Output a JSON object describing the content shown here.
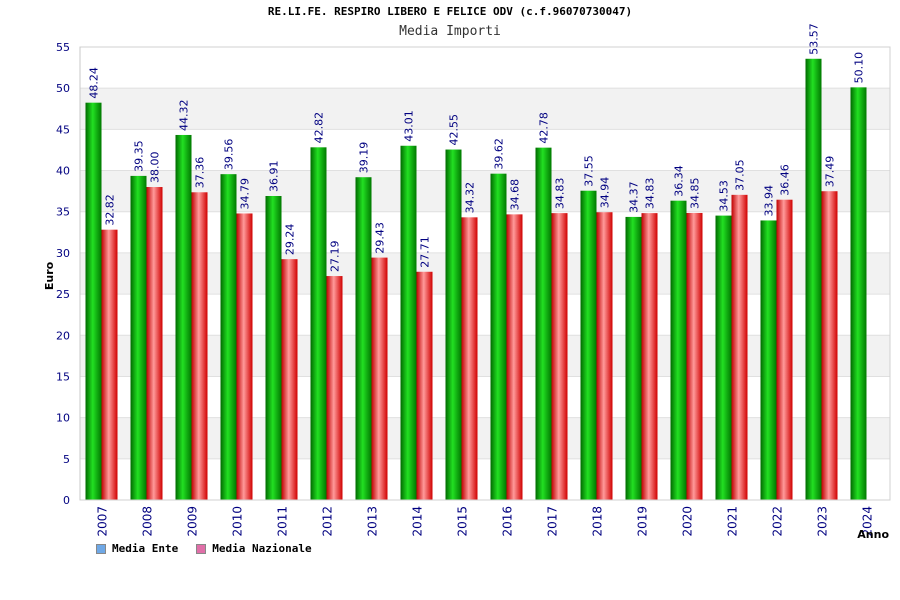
{
  "header": {
    "title": "RE.LI.FE. RESPIRO LIBERO E FELICE ODV (c.f.96070730047)",
    "subtitle": "Media Importi"
  },
  "legend": {
    "items": [
      {
        "label": "Media Ente",
        "color": "#6fa8e6"
      },
      {
        "label": "Media Nazionale",
        "color": "#e06fa8"
      }
    ]
  },
  "chart_data": {
    "type": "bar",
    "title": "Media Importi",
    "xlabel": "Anno",
    "ylabel": "Euro",
    "ylim": [
      0,
      55
    ],
    "yticks": [
      0,
      5,
      10,
      15,
      20,
      25,
      30,
      35,
      40,
      45,
      50,
      55
    ],
    "grid": true,
    "legend_position": "bottom-left",
    "categories": [
      "2007",
      "2008",
      "2009",
      "2010",
      "2011",
      "2012",
      "2013",
      "2014",
      "2015",
      "2016",
      "2017",
      "2018",
      "2019",
      "2020",
      "2021",
      "2022",
      "2023",
      "2024"
    ],
    "series": [
      {
        "name": "Media Ente",
        "color": "#00a000",
        "values": [
          48.24,
          39.35,
          44.32,
          39.56,
          36.91,
          42.82,
          39.19,
          43.01,
          42.55,
          39.62,
          42.78,
          37.55,
          34.37,
          36.34,
          34.53,
          33.94,
          53.57,
          50.1
        ],
        "labels": [
          "48.24",
          "39.35",
          "44.32",
          "39.56",
          "36.91",
          "42.82",
          "39.19",
          "43.01",
          "42.55",
          "39.62",
          "42.78",
          "37.55",
          "34.37",
          "36.34",
          "34.53",
          "33.94",
          "53.57",
          "50.10"
        ]
      },
      {
        "name": "Media Nazionale",
        "color": "#e00000",
        "values": [
          32.82,
          38.0,
          37.36,
          34.79,
          29.24,
          27.19,
          29.43,
          27.71,
          34.32,
          34.68,
          34.83,
          34.94,
          34.83,
          34.85,
          37.05,
          36.46,
          37.49,
          null
        ],
        "labels": [
          "32.82",
          "38.00",
          "37.36",
          "34.79",
          "29.24",
          "27.19",
          "29.43",
          "27.71",
          "34.32",
          "34.68",
          "34.83",
          "34.94",
          "34.83",
          "34.85",
          "37.05",
          "36.46",
          "37.49",
          ""
        ]
      }
    ]
  }
}
